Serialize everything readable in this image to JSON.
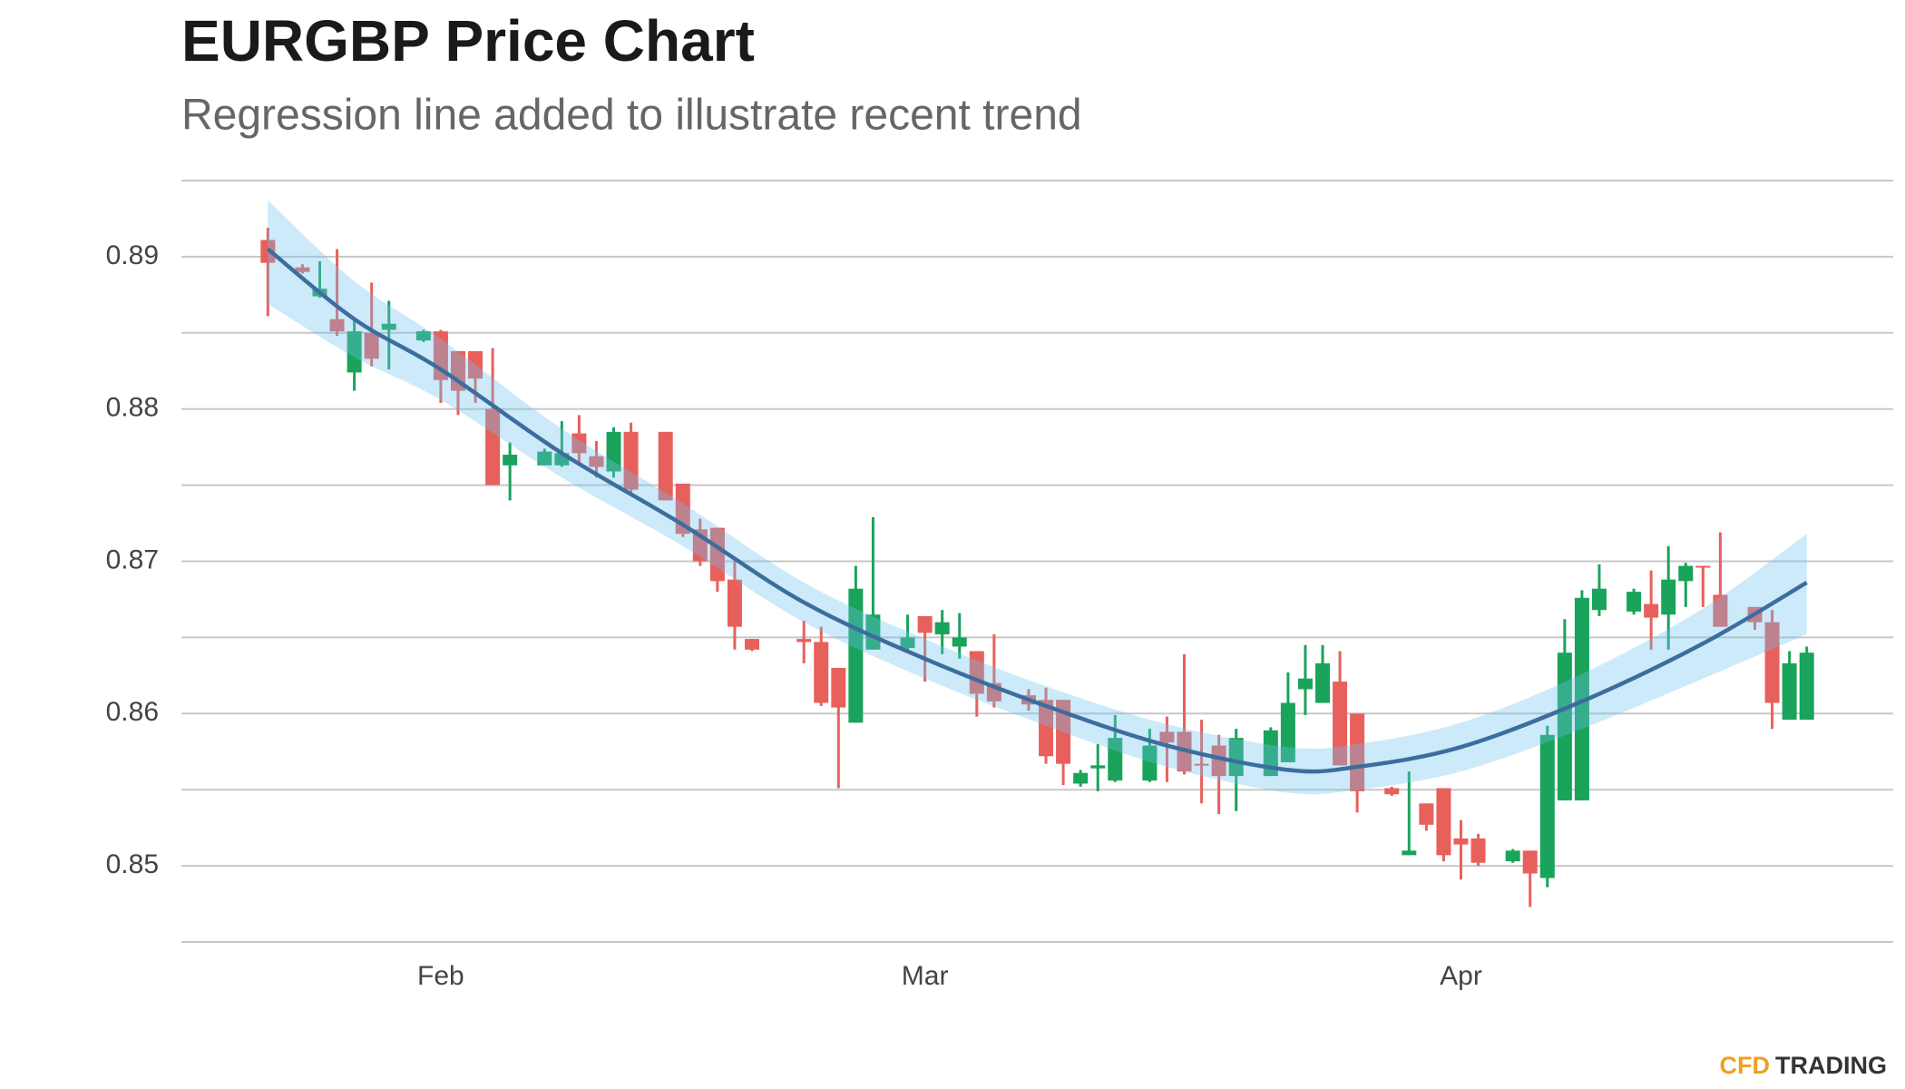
{
  "chart_data": {
    "type": "candlestick",
    "title": "EURGBP Price Chart",
    "subtitle": "Regression line added to illustrate recent trend",
    "x": [
      -10,
      -8,
      -7,
      -6,
      -5,
      -4,
      -3,
      -1,
      0,
      1,
      2,
      3,
      4,
      6,
      7,
      8,
      9,
      10,
      11,
      13,
      14,
      15,
      16,
      17,
      18,
      21,
      22,
      23,
      24,
      25,
      27,
      28,
      29,
      30,
      31,
      32,
      34,
      35,
      36,
      37,
      38,
      39,
      41,
      42,
      43,
      44,
      45,
      46,
      48,
      49,
      50,
      51,
      52,
      53,
      55,
      56,
      57,
      58,
      59,
      60,
      62,
      63,
      64,
      65,
      66,
      67,
      69,
      70,
      71,
      72,
      73,
      74,
      76,
      77,
      78,
      79
    ],
    "open": [
      0.8911,
      0.8893,
      0.8874,
      0.8859,
      0.8824,
      0.885,
      0.8852,
      0.8845,
      0.8851,
      0.8838,
      0.8838,
      0.88,
      0.8763,
      0.8763,
      0.8763,
      0.8784,
      0.8769,
      0.8759,
      0.8785,
      0.8785,
      0.8751,
      0.8721,
      0.8722,
      0.8688,
      0.8649,
      0.8649,
      0.8647,
      0.863,
      0.8594,
      0.8642,
      0.8643,
      0.8664,
      0.8652,
      0.8644,
      0.8641,
      0.862,
      0.8612,
      0.8609,
      0.8609,
      0.8554,
      0.8564,
      0.8556,
      0.8556,
      0.8588,
      0.8588,
      0.8567,
      0.8579,
      0.8559,
      0.8559,
      0.8568,
      0.8616,
      0.8607,
      0.8621,
      0.86,
      0.8551,
      0.8507,
      0.8541,
      0.8551,
      0.8518,
      0.8518,
      0.8503,
      0.851,
      0.8492,
      0.8543,
      0.8543,
      0.8668,
      0.8667,
      0.8672,
      0.8665,
      0.8687,
      0.8697,
      0.8678,
      0.867,
      0.866,
      0.8596,
      0.8596
    ],
    "high": [
      0.8919,
      0.8895,
      0.8897,
      0.8905,
      0.8859,
      0.8883,
      0.8871,
      0.8852,
      0.8852,
      0.8838,
      0.8838,
      0.884,
      0.8778,
      0.8774,
      0.8792,
      0.8796,
      0.8779,
      0.8788,
      0.8791,
      0.8785,
      0.8751,
      0.8728,
      0.8722,
      0.87,
      0.8649,
      0.8661,
      0.8657,
      0.863,
      0.8697,
      0.8729,
      0.8665,
      0.8664,
      0.8668,
      0.8666,
      0.8641,
      0.8652,
      0.8616,
      0.8617,
      0.8609,
      0.8563,
      0.858,
      0.8599,
      0.859,
      0.8598,
      0.8639,
      0.8596,
      0.8586,
      0.859,
      0.8591,
      0.8627,
      0.8645,
      0.8645,
      0.8641,
      0.86,
      0.8552,
      0.8562,
      0.8541,
      0.8551,
      0.853,
      0.8521,
      0.8511,
      0.851,
      0.8592,
      0.8662,
      0.8681,
      0.8698,
      0.8682,
      0.8694,
      0.871,
      0.8699,
      0.8697,
      0.8719,
      0.867,
      0.8668,
      0.8641,
      0.8644
    ],
    "low": [
      0.8861,
      0.8889,
      0.8873,
      0.8848,
      0.8812,
      0.8828,
      0.8826,
      0.8844,
      0.8804,
      0.8796,
      0.8804,
      0.875,
      0.874,
      0.8763,
      0.8762,
      0.8763,
      0.8755,
      0.8755,
      0.8745,
      0.874,
      0.8716,
      0.8697,
      0.868,
      0.8642,
      0.8641,
      0.8633,
      0.8605,
      0.8551,
      0.8594,
      0.8642,
      0.8641,
      0.8621,
      0.8639,
      0.8636,
      0.8598,
      0.8604,
      0.8602,
      0.8567,
      0.8553,
      0.8552,
      0.8549,
      0.8555,
      0.8555,
      0.8555,
      0.856,
      0.8541,
      0.8534,
      0.8536,
      0.8559,
      0.8568,
      0.8599,
      0.8607,
      0.8566,
      0.8535,
      0.8546,
      0.8507,
      0.8523,
      0.8503,
      0.8491,
      0.85,
      0.8502,
      0.8473,
      0.8486,
      0.8543,
      0.8543,
      0.8664,
      0.8665,
      0.8642,
      0.8642,
      0.867,
      0.867,
      0.8657,
      0.8655,
      0.859,
      0.8596,
      0.8596
    ],
    "close": [
      0.8896,
      0.889,
      0.8879,
      0.8851,
      0.8851,
      0.8833,
      0.8856,
      0.8851,
      0.8819,
      0.8812,
      0.882,
      0.875,
      0.877,
      0.8772,
      0.8771,
      0.8771,
      0.8762,
      0.8785,
      0.8747,
      0.874,
      0.8718,
      0.87,
      0.8687,
      0.8657,
      0.8642,
      0.8647,
      0.8607,
      0.8604,
      0.8682,
      0.8665,
      0.865,
      0.8653,
      0.866,
      0.865,
      0.8613,
      0.8608,
      0.8606,
      0.8572,
      0.8567,
      0.8561,
      0.8566,
      0.8584,
      0.8579,
      0.8581,
      0.8562,
      0.8566,
      0.8559,
      0.8584,
      0.8589,
      0.8607,
      0.8623,
      0.8633,
      0.8566,
      0.8549,
      0.8547,
      0.851,
      0.8527,
      0.8507,
      0.8514,
      0.8502,
      0.851,
      0.8495,
      0.8586,
      0.864,
      0.8676,
      0.8682,
      0.868,
      0.8663,
      0.8688,
      0.8697,
      0.8696,
      0.8657,
      0.866,
      0.8607,
      0.8633,
      0.864
    ],
    "up_color": "#1aa35a",
    "down_color": "#e8605c",
    "regression": {
      "x": [
        -10,
        -5,
        0,
        7,
        14,
        21,
        28,
        35,
        42,
        49,
        53,
        59,
        66,
        73,
        79
      ],
      "values": [
        0.8905,
        0.8859,
        0.8826,
        0.8771,
        0.8724,
        0.8673,
        0.8636,
        0.8605,
        0.8579,
        0.8563,
        0.8565,
        0.8578,
        0.8608,
        0.8646,
        0.8686
      ],
      "upper": [
        0.8937,
        0.8884,
        0.8846,
        0.8787,
        0.8738,
        0.8686,
        0.8649,
        0.8618,
        0.8593,
        0.8578,
        0.858,
        0.8594,
        0.8626,
        0.8669,
        0.8718
      ],
      "lower": [
        0.8869,
        0.8834,
        0.8806,
        0.8755,
        0.871,
        0.866,
        0.8623,
        0.8592,
        0.8565,
        0.8548,
        0.855,
        0.8562,
        0.859,
        0.8623,
        0.8652
      ],
      "color": "#3d6d9e",
      "band_color": "#6ec3ee"
    },
    "xlim": [
      -15,
      84
    ],
    "xticks": [
      {
        "value": 0,
        "label": "Feb"
      },
      {
        "value": 28,
        "label": "Mar"
      },
      {
        "value": 59,
        "label": "Apr"
      }
    ],
    "ylim": [
      0.845,
      0.895
    ],
    "yticks": [
      0.85,
      0.86,
      0.87,
      0.88,
      0.89
    ],
    "ygrid": [
      0.845,
      0.855,
      0.865,
      0.875,
      0.885,
      0.895
    ],
    "grid": true
  },
  "footer": {
    "brand_prefix": "CFD",
    "brand_suffix": "TRADING"
  }
}
